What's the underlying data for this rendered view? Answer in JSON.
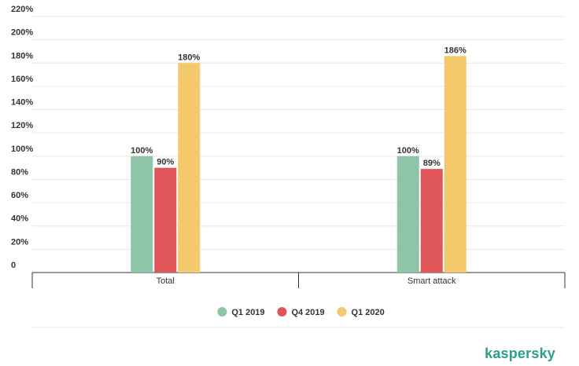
{
  "chart_data": {
    "type": "bar",
    "categories": [
      "Total",
      "Smart attack"
    ],
    "series": [
      {
        "name": "Q1 2019",
        "values": [
          100,
          100
        ],
        "labels": [
          "100%",
          "100%"
        ],
        "color": "#8ec4a7"
      },
      {
        "name": "Q4 2019",
        "values": [
          90,
          89
        ],
        "labels": [
          "90%",
          "89%"
        ],
        "color": "#e05558"
      },
      {
        "name": "Q1 2020",
        "values": [
          180,
          186
        ],
        "labels": [
          "180%",
          "186%"
        ],
        "color": "#f3c96b"
      }
    ],
    "yticks": [
      "0",
      "20%",
      "40%",
      "60%",
      "80%",
      "100%",
      "120%",
      "140%",
      "160%",
      "180%",
      "200%",
      "220%"
    ],
    "ylim": [
      0,
      220
    ],
    "grid": true,
    "legend_position": "bottom"
  },
  "branding": {
    "logo_text": "kaspersky"
  }
}
